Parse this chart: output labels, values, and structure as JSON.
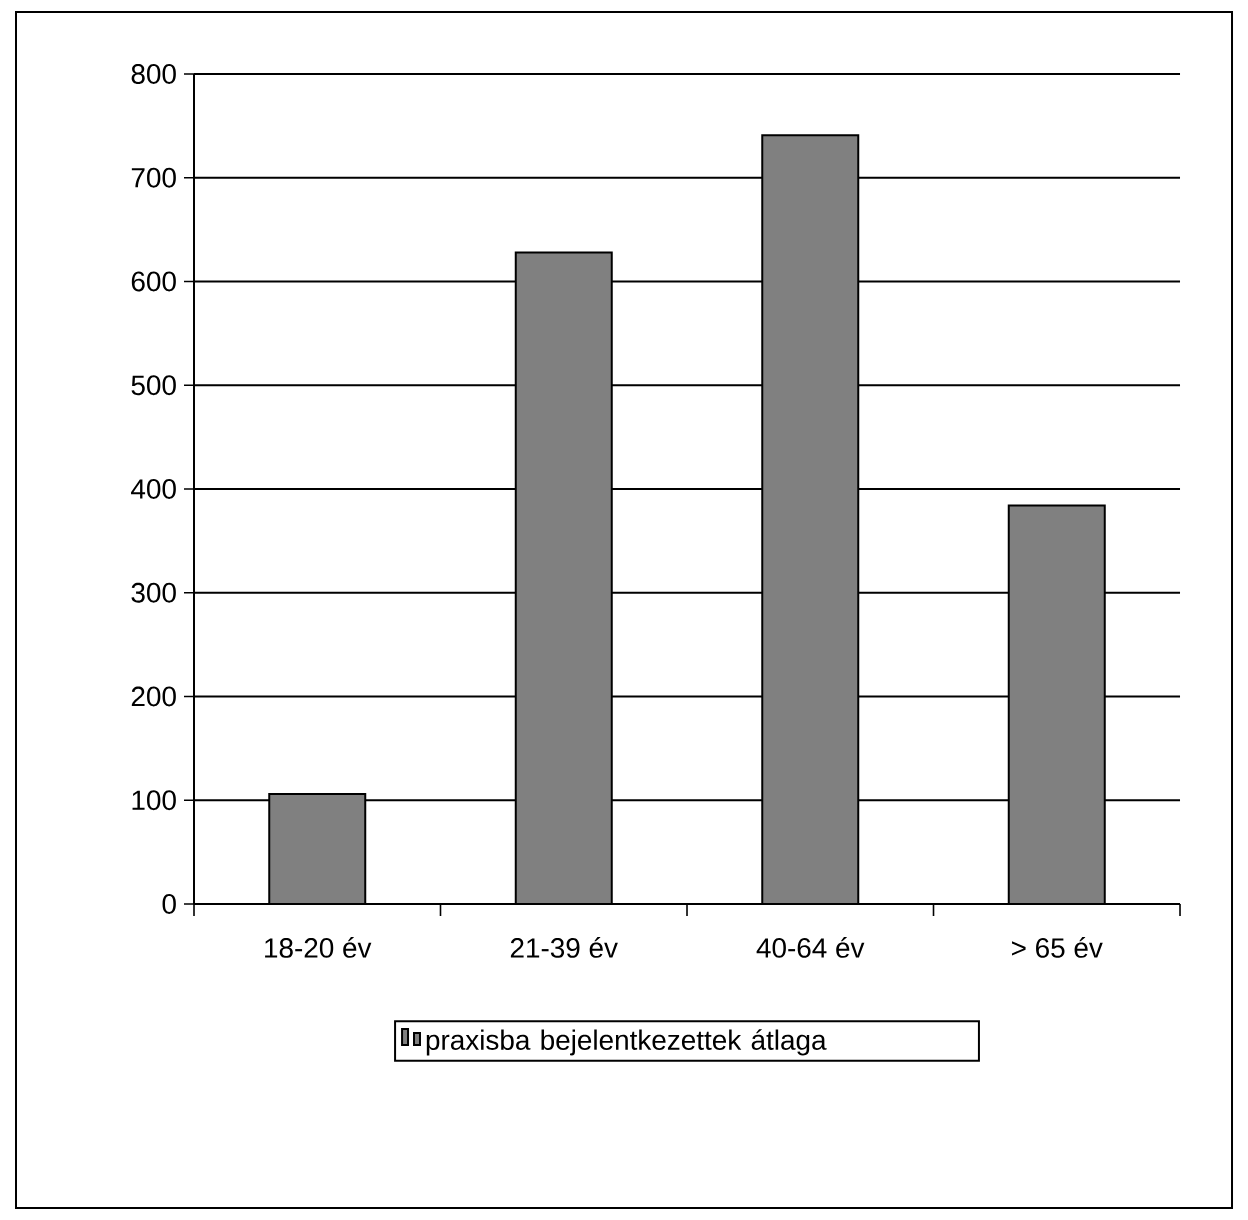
{
  "chart_data": {
    "type": "bar",
    "categories": [
      "18-20 év",
      "21-39 év",
      "40-64 év",
      "> 65 év"
    ],
    "series": [
      {
        "name": "praxisba bejelentkezettek átlaga",
        "color": "#808080",
        "values": [
          106,
          628,
          741,
          384
        ]
      }
    ],
    "ylim": [
      0,
      800
    ],
    "yticks": [
      0,
      100,
      200,
      300,
      400,
      500,
      600,
      700,
      800
    ],
    "grid": "y",
    "legend": "bottom"
  }
}
